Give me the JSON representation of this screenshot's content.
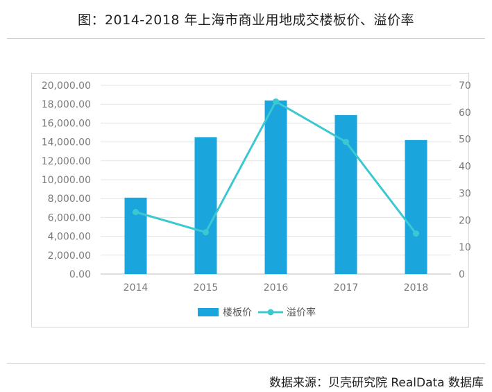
{
  "title": "图：2014-2018 年上海市商业用地成交楼板价、溢价率",
  "source": "数据来源：贝壳研究院 RealData 数据库",
  "chart_data": {
    "type": "bar",
    "categories": [
      "2014",
      "2015",
      "2016",
      "2017",
      "2018"
    ],
    "series": [
      {
        "name": "楼板价",
        "type": "bar",
        "axis": "left",
        "color": "#1aa6dc",
        "values": [
          8100,
          14500,
          18400,
          16850,
          14200
        ]
      },
      {
        "name": "溢价率",
        "type": "line",
        "axis": "right",
        "color": "#3cc8d2",
        "values": [
          23,
          15.5,
          64,
          49,
          15
        ]
      }
    ],
    "y_left": {
      "ylim": [
        0,
        20000
      ],
      "ticks": [
        "0.00",
        "2,000.00",
        "4,000.00",
        "6,000.00",
        "8,000.00",
        "10,000.00",
        "12,000.00",
        "14,000.00",
        "16,000.00",
        "18,000.00",
        "20,000.00"
      ]
    },
    "y_right": {
      "ylim": [
        0,
        70
      ],
      "ticks": [
        "0",
        "10",
        "20",
        "30",
        "40",
        "50",
        "60",
        "70"
      ]
    },
    "grid": true,
    "legend": "bottom-center"
  }
}
